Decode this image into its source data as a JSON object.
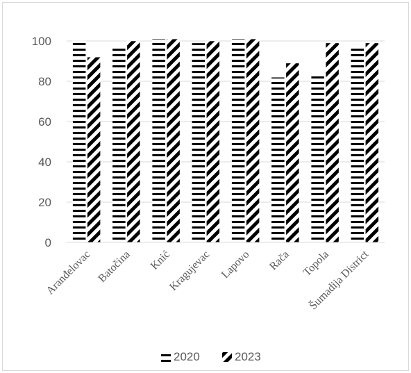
{
  "chart_data": {
    "type": "bar",
    "categories": [
      "Aranđelovac",
      "Batočina",
      "Knić",
      "Kragujevac",
      "Lapovo",
      "Rača",
      "Topola",
      "Šumadija District"
    ],
    "series": [
      {
        "name": "2020",
        "values": [
          100,
          97,
          101,
          99,
          101,
          82,
          84,
          98
        ],
        "pattern": "horizontal-stripes",
        "color": "#000000"
      },
      {
        "name": "2023",
        "values": [
          92,
          100,
          101,
          100,
          101,
          89,
          99,
          99
        ],
        "pattern": "diagonal-stripes",
        "color": "#000000"
      }
    ],
    "title": "",
    "xlabel": "",
    "ylabel": "",
    "ylim": [
      0,
      100
    ],
    "yticks": [
      0,
      20,
      40,
      60,
      80,
      100
    ],
    "grid": true,
    "legend_position": "bottom",
    "gridline_color": "#d9d9d9",
    "text_color": "#595959"
  }
}
